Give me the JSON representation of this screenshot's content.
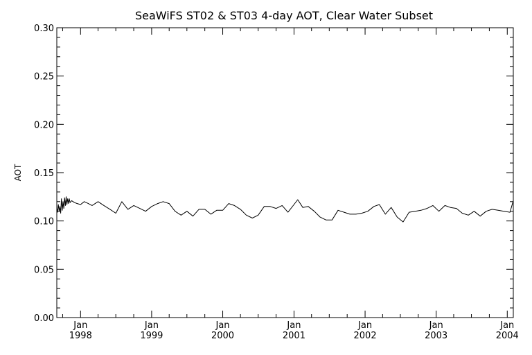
{
  "chart_data": {
    "type": "line",
    "title": "SeaWiFS ST02 & ST03 4-day AOT, Clear Water Subset",
    "xlabel": "",
    "ylabel": "AOT",
    "ylim": [
      0,
      0.3
    ],
    "xlim": [
      "1997-09-01",
      "2004-02-01"
    ],
    "grid": false,
    "legend": "none",
    "y_ticks": [
      {
        "value": 0.0,
        "label": "0.00"
      },
      {
        "value": 0.05,
        "label": "0.05"
      },
      {
        "value": 0.1,
        "label": "0.10"
      },
      {
        "value": 0.15,
        "label": "0.15"
      },
      {
        "value": 0.2,
        "label": "0.20"
      },
      {
        "value": 0.25,
        "label": "0.25"
      },
      {
        "value": 0.3,
        "label": "0.30"
      }
    ],
    "x_ticks": [
      {
        "date": "1998-01-01",
        "month": "Jan",
        "year": "1998"
      },
      {
        "date": "1999-01-01",
        "month": "Jan",
        "year": "1999"
      },
      {
        "date": "2000-01-01",
        "month": "Jan",
        "year": "2000"
      },
      {
        "date": "2001-01-01",
        "month": "Jan",
        "year": "2001"
      },
      {
        "date": "2002-01-01",
        "month": "Jan",
        "year": "2002"
      },
      {
        "date": "2003-01-01",
        "month": "Jan",
        "year": "2003"
      },
      {
        "date": "2004-01-01",
        "month": "Jan",
        "year": "2004"
      }
    ],
    "series": [
      {
        "color": "#000000",
        "points": [
          [
            "1997-09-01",
            0.113
          ],
          [
            "1997-09-05",
            0.109
          ],
          [
            "1997-09-09",
            0.117
          ],
          [
            "1997-09-13",
            0.11
          ],
          [
            "1997-09-17",
            0.115
          ],
          [
            "1997-09-21",
            0.108
          ],
          [
            "1997-09-25",
            0.123
          ],
          [
            "1997-09-29",
            0.111
          ],
          [
            "1997-10-03",
            0.12
          ],
          [
            "1997-10-07",
            0.113
          ],
          [
            "1997-10-11",
            0.124
          ],
          [
            "1997-10-15",
            0.116
          ],
          [
            "1997-10-19",
            0.125
          ],
          [
            "1997-10-23",
            0.117
          ],
          [
            "1997-10-27",
            0.123
          ],
          [
            "1997-10-31",
            0.118
          ],
          [
            "1997-11-04",
            0.123
          ],
          [
            "1997-11-08",
            0.119
          ],
          [
            "1997-11-16",
            0.121
          ],
          [
            "1997-12-01",
            0.119
          ],
          [
            "1997-12-15",
            0.118
          ],
          [
            "1998-01-01",
            0.117
          ],
          [
            "1998-01-20",
            0.12
          ],
          [
            "1998-02-10",
            0.118
          ],
          [
            "1998-03-01",
            0.116
          ],
          [
            "1998-04-01",
            0.12
          ],
          [
            "1998-05-01",
            0.116
          ],
          [
            "1998-06-01",
            0.112
          ],
          [
            "1998-07-01",
            0.108
          ],
          [
            "1998-08-01",
            0.12
          ],
          [
            "1998-09-01",
            0.112
          ],
          [
            "1998-10-01",
            0.116
          ],
          [
            "1998-11-01",
            0.113
          ],
          [
            "1998-12-01",
            0.11
          ],
          [
            "1999-01-01",
            0.115
          ],
          [
            "1999-02-01",
            0.118
          ],
          [
            "1999-03-01",
            0.12
          ],
          [
            "1999-04-01",
            0.118
          ],
          [
            "1999-05-01",
            0.11
          ],
          [
            "1999-06-01",
            0.106
          ],
          [
            "1999-07-01",
            0.11
          ],
          [
            "1999-08-01",
            0.105
          ],
          [
            "1999-09-01",
            0.112
          ],
          [
            "1999-10-01",
            0.112
          ],
          [
            "1999-11-01",
            0.107
          ],
          [
            "1999-12-01",
            0.111
          ],
          [
            "2000-01-01",
            0.111
          ],
          [
            "2000-02-01",
            0.118
          ],
          [
            "2000-03-01",
            0.116
          ],
          [
            "2000-04-01",
            0.112
          ],
          [
            "2000-05-01",
            0.106
          ],
          [
            "2000-06-01",
            0.103
          ],
          [
            "2000-07-01",
            0.106
          ],
          [
            "2000-08-01",
            0.115
          ],
          [
            "2000-09-01",
            0.115
          ],
          [
            "2000-10-01",
            0.113
          ],
          [
            "2000-11-01",
            0.116
          ],
          [
            "2000-12-01",
            0.109
          ],
          [
            "2001-01-01",
            0.117
          ],
          [
            "2001-01-20",
            0.122
          ],
          [
            "2001-02-15",
            0.114
          ],
          [
            "2001-03-15",
            0.115
          ],
          [
            "2001-04-15",
            0.11
          ],
          [
            "2001-05-15",
            0.104
          ],
          [
            "2001-06-15",
            0.101
          ],
          [
            "2001-07-15",
            0.101
          ],
          [
            "2001-08-15",
            0.111
          ],
          [
            "2001-09-15",
            0.109
          ],
          [
            "2001-10-15",
            0.107
          ],
          [
            "2001-11-15",
            0.107
          ],
          [
            "2001-12-15",
            0.108
          ],
          [
            "2002-01-15",
            0.11
          ],
          [
            "2002-02-15",
            0.115
          ],
          [
            "2002-03-15",
            0.117
          ],
          [
            "2002-04-15",
            0.107
          ],
          [
            "2002-05-15",
            0.114
          ],
          [
            "2002-06-15",
            0.104
          ],
          [
            "2002-07-15",
            0.099
          ],
          [
            "2002-08-15",
            0.109
          ],
          [
            "2002-09-15",
            0.11
          ],
          [
            "2002-10-15",
            0.111
          ],
          [
            "2002-11-15",
            0.113
          ],
          [
            "2002-12-15",
            0.116
          ],
          [
            "2003-01-15",
            0.11
          ],
          [
            "2003-02-15",
            0.116
          ],
          [
            "2003-03-15",
            0.114
          ],
          [
            "2003-04-15",
            0.113
          ],
          [
            "2003-05-15",
            0.108
          ],
          [
            "2003-06-15",
            0.106
          ],
          [
            "2003-07-15",
            0.11
          ],
          [
            "2003-08-15",
            0.105
          ],
          [
            "2003-09-15",
            0.11
          ],
          [
            "2003-10-15",
            0.112
          ],
          [
            "2003-11-15",
            0.111
          ],
          [
            "2003-12-15",
            0.11
          ],
          [
            "2004-01-15",
            0.109
          ],
          [
            "2004-02-01",
            0.121
          ]
        ]
      }
    ]
  }
}
